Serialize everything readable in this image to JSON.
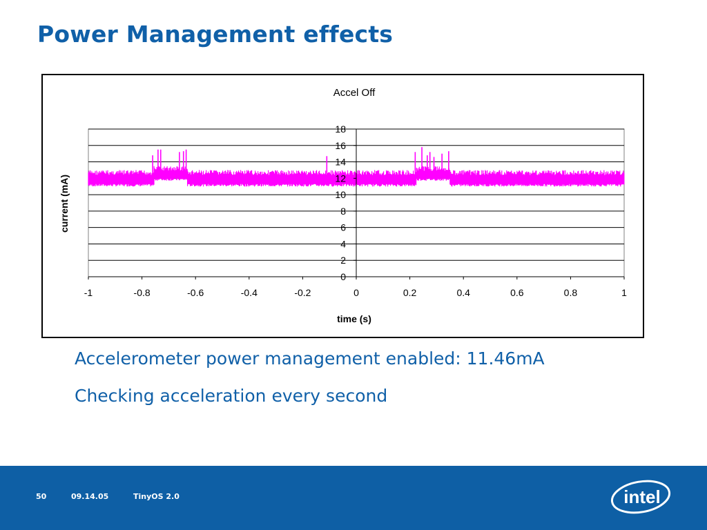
{
  "slide": {
    "title": "Power Management effects",
    "bullets": [
      "Accelerometer power management enabled: 11.46mA",
      "Checking acceleration every second"
    ]
  },
  "footer": {
    "page_number": "50",
    "date": "09.14.05",
    "product": "TinyOS 2.0",
    "logo_text": "intel"
  },
  "colors": {
    "title": "#1060a8",
    "footer_bg": "#0e5fa5",
    "series": "#ff00ff"
  },
  "chart_data": {
    "type": "line",
    "title": "Accel Off",
    "xlabel": "time (s)",
    "ylabel": "current (mA)",
    "xlim": [
      -1,
      1
    ],
    "ylim": [
      0,
      18
    ],
    "x_ticks": [
      "-1",
      "-0.8",
      "-0.6",
      "-0.4",
      "-0.2",
      "0",
      "0.2",
      "0.4",
      "0.6",
      "0.8",
      "1"
    ],
    "y_ticks": [
      "0",
      "2",
      "4",
      "6",
      "8",
      "10",
      "12",
      "14",
      "16",
      "18"
    ],
    "grid": true,
    "legend": "none",
    "series": [
      {
        "color": "#ff00ff",
        "segments": [
          {
            "x_start": -1.0,
            "x_end": -0.755,
            "low": 11.0,
            "high": 13.0
          },
          {
            "x_start": -0.755,
            "x_end": -0.63,
            "low": 11.7,
            "high": 13.5
          },
          {
            "x_start": -0.63,
            "x_end": 0.225,
            "low": 11.0,
            "high": 13.0
          },
          {
            "x_start": 0.225,
            "x_end": 0.35,
            "low": 11.7,
            "high": 13.5
          },
          {
            "x_start": 0.35,
            "x_end": 1.0,
            "low": 11.0,
            "high": 13.0
          }
        ],
        "spikes": [
          {
            "x": -0.76,
            "y": 14.8
          },
          {
            "x": -0.74,
            "y": 15.5
          },
          {
            "x": -0.73,
            "y": 15.5
          },
          {
            "x": -0.66,
            "y": 15.2
          },
          {
            "x": -0.645,
            "y": 15.3
          },
          {
            "x": -0.635,
            "y": 15.5
          },
          {
            "x": -0.11,
            "y": 14.7
          },
          {
            "x": 0.22,
            "y": 15.2
          },
          {
            "x": 0.245,
            "y": 15.8
          },
          {
            "x": 0.265,
            "y": 14.8
          },
          {
            "x": 0.275,
            "y": 15.2
          },
          {
            "x": 0.29,
            "y": 14.6
          },
          {
            "x": 0.32,
            "y": 15.0
          },
          {
            "x": 0.345,
            "y": 15.3
          }
        ]
      }
    ]
  }
}
